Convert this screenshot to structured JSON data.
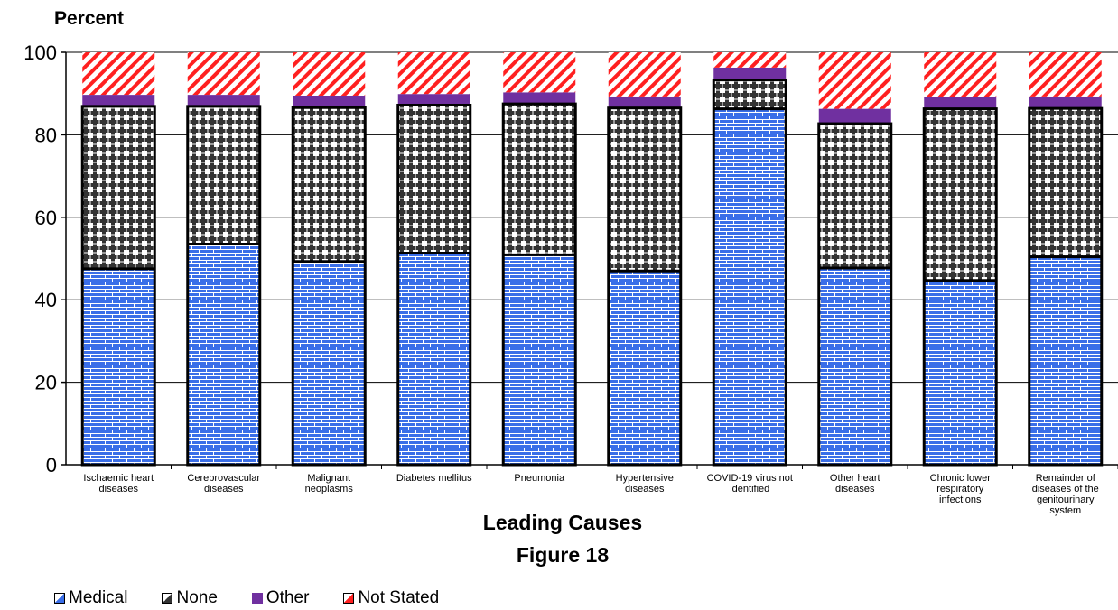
{
  "chart_data": {
    "type": "bar",
    "stacked": true,
    "title": "Figure 18",
    "xlabel": "Leading Causes",
    "ylabel": "Percent",
    "ylim": [
      0,
      100
    ],
    "yticks": [
      0,
      20,
      40,
      60,
      80,
      100
    ],
    "grid": true,
    "legend_position": "bottom-left",
    "categories": [
      [
        "Ischaemic heart",
        "diseases"
      ],
      [
        "Cerebrovascular",
        "diseases"
      ],
      [
        "Malignant",
        "neoplasms"
      ],
      [
        "Diabetes mellitus"
      ],
      [
        "Pneumonia"
      ],
      [
        "Hypertensive",
        "diseases"
      ],
      [
        "COVID-19 virus not",
        "identified"
      ],
      [
        "Other heart",
        "diseases"
      ],
      [
        "Chronic lower",
        "respiratory",
        "infections"
      ],
      [
        "Remainder of",
        "diseases of the",
        "genitourinary",
        "system"
      ]
    ],
    "series": [
      {
        "name": "Medical",
        "color": "#3a6ee8",
        "pattern": "brick",
        "values": [
          47.5,
          53.5,
          49.3,
          51.3,
          50.9,
          47.0,
          86.3,
          47.7,
          44.7,
          50.4
        ]
      },
      {
        "name": "None",
        "color": "#333333",
        "pattern": "plus",
        "values": [
          39.4,
          33.4,
          37.3,
          35.9,
          36.6,
          39.5,
          7.0,
          35.0,
          41.6,
          36.0
        ]
      },
      {
        "name": "Other",
        "color": "#7030a0",
        "pattern": "solid",
        "values": [
          2.8,
          2.8,
          2.9,
          2.7,
          2.8,
          2.8,
          3.0,
          3.6,
          2.9,
          2.9
        ]
      },
      {
        "name": "Not Stated",
        "color": "#ff2020",
        "pattern": "diagonal",
        "values": [
          10.3,
          10.3,
          10.5,
          10.1,
          9.7,
          10.7,
          3.7,
          13.7,
          10.8,
          10.7
        ]
      }
    ]
  }
}
